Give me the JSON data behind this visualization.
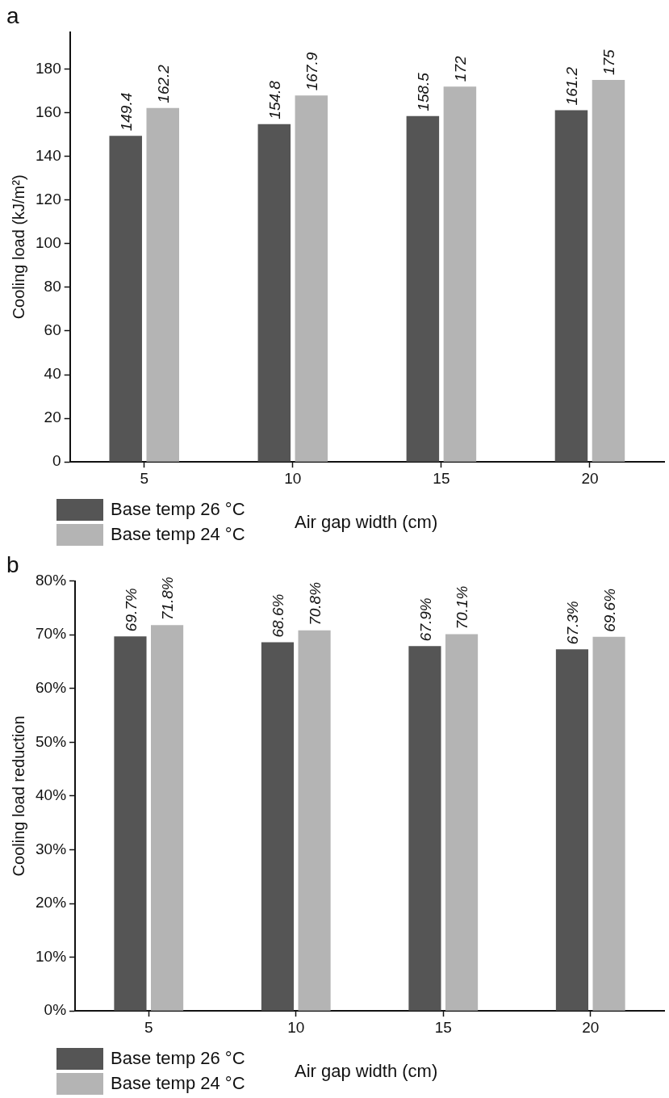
{
  "chart_data": [
    {
      "type": "bar",
      "title": "a",
      "xlabel": "Air gap width (cm)",
      "ylabel": "Cooling load (kJ/m²)",
      "categories": [
        "5",
        "10",
        "15",
        "20"
      ],
      "series": [
        {
          "name": "Base temp 26 °C",
          "color": "#555555",
          "values": [
            149.4,
            154.8,
            158.5,
            161.2
          ]
        },
        {
          "name": "Base temp 24 °C",
          "color": "#b4b4b4",
          "values": [
            162.2,
            167.9,
            172,
            175
          ]
        }
      ],
      "ylim": [
        0,
        197
      ],
      "yticks": [
        0,
        20,
        40,
        60,
        80,
        100,
        120,
        140,
        160,
        180
      ],
      "grid": false,
      "legend": "bottom left",
      "data_labels": true
    },
    {
      "type": "bar",
      "title": "b",
      "xlabel": "Air gap width (cm)",
      "ylabel": "Cooling load reduction",
      "categories": [
        "5",
        "10",
        "15",
        "20"
      ],
      "series": [
        {
          "name": "Base temp 26 °C",
          "color": "#555555",
          "values": [
            69.7,
            68.6,
            67.9,
            67.3
          ],
          "value_labels": [
            "69.7%",
            "68.6%",
            "67.9%",
            "67.3%"
          ]
        },
        {
          "name": "Base temp 24 °C",
          "color": "#b4b4b4",
          "values": [
            71.8,
            70.8,
            70.1,
            69.6
          ],
          "value_labels": [
            "71.8%",
            "70.8%",
            "70.1%",
            "69.6%"
          ]
        }
      ],
      "ylim": [
        0,
        80
      ],
      "yticks": [
        {
          "value": 0,
          "label": "0%"
        },
        {
          "value": 10,
          "label": "10%"
        },
        {
          "value": 20,
          "label": "20%"
        },
        {
          "value": 30,
          "label": "30%"
        },
        {
          "value": 40,
          "label": "40%"
        },
        {
          "value": 50,
          "label": "50%"
        },
        {
          "value": 60,
          "label": "60%"
        },
        {
          "value": 70,
          "label": "70%"
        },
        {
          "value": 80,
          "label": "80%"
        }
      ],
      "grid": false,
      "legend": "bottom left"
    }
  ]
}
